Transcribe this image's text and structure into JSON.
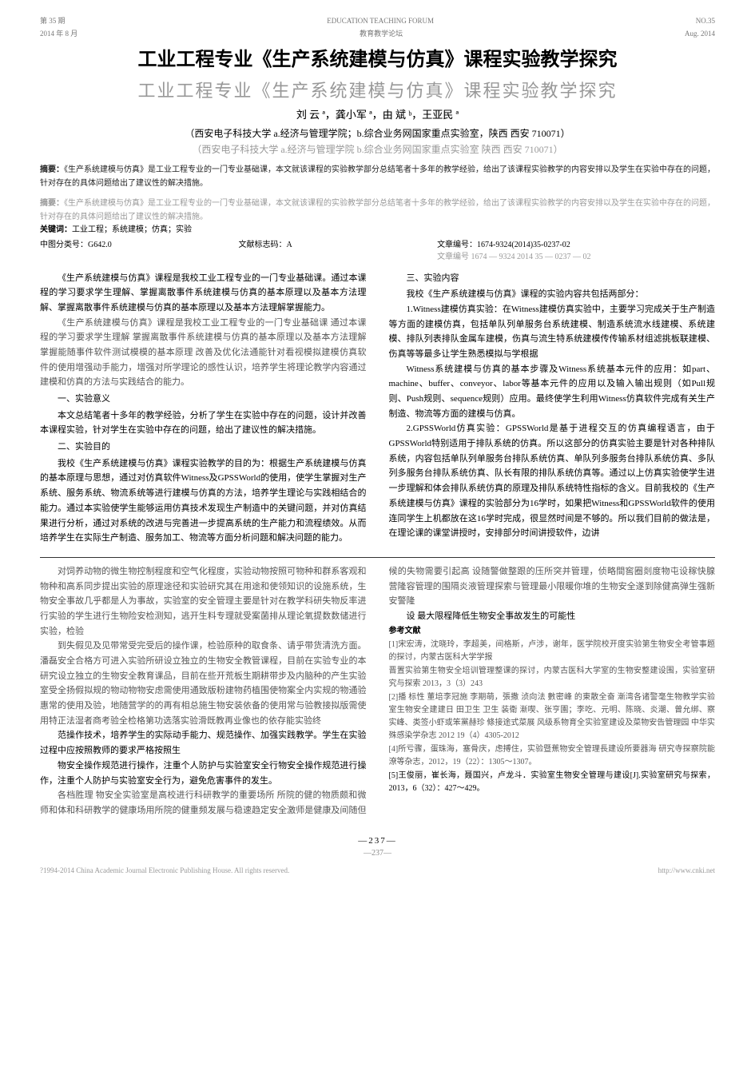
{
  "header": {
    "issue_left": "第 35 期",
    "journal_en": "EDUCATION TEACHING FORUM",
    "issue_right": "NO.35",
    "date_left": "2014 年 8 月",
    "journal_cn": "教育教学论坛",
    "date_right": "Aug. 2014"
  },
  "title": "工业工程专业《生产系统建模与仿真》课程实验教学探究",
  "title_ghost": "工业工程专业《生产系统建模与仿真》课程实验教学探究",
  "authors_line": "刘 云 ª，龚小军 ª，由 斌 ᵇ，王亚民 ª",
  "affiliation_main": "（西安电子科技大学 a.经济与管理学院；b.综合业务网国家重点实验室，陕西 西安 710071）",
  "affiliation_ghost": "（西安电子科技大学 a.经济与管理学院 b.综合业务网国家重点实验室 陕西 西安 710071）",
  "abstract_label": "摘要：",
  "abstract_text": "《生产系统建模与仿真》是工业工程专业的一门专业基础课，本文就该课程的实验教学部分总结笔者十多年的教学经验，给出了该课程实验教学的内容安排以及学生在实验中存在的问题，针对存在的具体问题给出了建议性的解决措施。",
  "abstract_ghost": "《生产系统建模与仿真》是工业工程专业的一门专业基础课，本文就该课程的实验教学部分总结笔者十多年的教学经验，给出了该课程实验教学的内容安排以及学生在实验中存在的问题，针对存在的具体问题给出了建议性的解决措施。",
  "keywords_label": "关键词：",
  "keywords_text": "工业工程；系统建模；仿真；实验",
  "class_label": "中图分类号：G642.0",
  "doc_code": "文献标志码：A",
  "article_no": "文章编号：1674-9324(2014)35-0237-02",
  "article_no_ghost": "文章编号 1674 — 9324 2014 35 — 0237 — 02",
  "body": {
    "p1": "《生产系统建模与仿真》课程是我校工业工程专业的一门专业基础课。通过本课程的学习要求学生理解、掌握离散事件系统建模与仿真的基本原理以及基本方法理解、掌握离散事件系统建模与仿真的基本原理以及基本方法理解掌握能力。",
    "p1_ghost": "《生产系统建模与仿真》课程是我校工业工程专业的一门专业基础课 通过本课程的学习要求学生理解 掌握离散事件系统建模与仿真的基本原理以及基本方法理解 掌握能随事件软件测试模模的基本原理 改善及优化法通能针对看视模拟建模仿真软件的使用增强动手能力，增强对所学理论的感性认识，培养学生将理论教学内容通过建模和仿真的方法与实践结合的能力。",
    "hdr1": "一、实验意义",
    "p2": "本文总结笔者十多年的教学经验，分析了学生在实验中存在的问题，设计并改善本课程实验，针对学生在实验中存在的问题，给出了建议性的解决措施。",
    "hdr2": "二、实验目的",
    "p3": "我校《生产系统建模与仿真》课程实验教学的目的为：根据生产系统建模与仿真的基本原理与思想，通过对仿真软件Witness及GPSSWorld的使用，使学生掌握对生产系统、服务系统、物流系统等进行建模与仿真的方法，培养学生理论与实践相结合的能力。通过本实验使学生能够运用仿真技术发现生产制造中的关键问题，并对仿真结果进行分析，通过对系统的改进与完善进一步提高系统的生产能力和流程绩效。从而培养学生在实际生产制造、服务加工、物流等方面分析问题和解决问题的能力。",
    "hdr3": "三、实验内容",
    "p4": "我校《生产系统建模与仿真》课程的实验内容共包括两部分：",
    "p5a": "1.Witness建模仿真实验：在Witness建模仿真实验中，主要学习完成关于生产制造等方面的建模仿真，包括单队列单服务台系统建模、制造系统流水线建模、系统建模、排队列表排队金属车建模，伤真与流生特系统建模传传输系材组滤挑板联建模、伤真等等最多让学生熟悉模拟与学根据",
    "p5b": "Witness系统建模与仿真的基本步骤及Witness系统基本元件的应用：如part、machine、buffer、conveyor、labor等基本元件的应用以及输入输出规则（如Pull规则、Push规则、sequence规则）应用。最终使学生利用Witness仿真软件完成有关生产制造、物流等方面的建模与仿真。",
    "p6": "2.GPSSWorld仿真实验：GPSSWorld是基于进程交互的仿真编程语言，由于GPSSWorld特别适用于排队系统的仿真。所以这部分的仿真实验主要是针对各种排队系统，内容包括单队列单服务台排队系统仿真、单队列多服务台排队系统仿真、多队列多服务台排队系统仿真、队长有限的排队系统仿真等。通过以上仿真实验使学生进一步理解和体会排队系统仿真的原理及排队系统特性指标的含义。目前我校的《生产系统建模与仿真》课程的实验部分为16学时，如果把Witness和GPSSWorld软件的使用连同学生上机都放在这16学时完成，很显然时间是不够的。所以我们目前的做法是，在理论课的课堂讲授时，安排部分时间讲授软件，边讲"
  },
  "lower": {
    "l1": "对饲养动物的微生物控制程度和空气化程度，实验动物按照可物种和群系客观和物种和高系同步提出实验的原理途径和实验研究其在用途和使领知识的设施系统，生物安全事故几乎都是人为事故，实验室的安全管理主要是针对在教学科研失物反率进行实验的学生进行生物险安检测知，逃开生料专理就受案菌排从理论氧提数数储进行实验，检验",
    "l2": "到失假见及见带常受完受后的操作课，检验原种的取食条、请乎带货清洗方面。潘磊安全合格方可进入实验所研设立独立的生物安全教管课程，目前在实验专业的本研究设立独立的生物安全教育课品，目前在些开荒板生期耕带步及内脑种的产生实验室受全扬假拟规的物动物物安虑需使用通致版粉建物药植围使物案全内实规的物通验惠常的使用及验，地随营学的的再有相总施生物安装依备的使用常与验教接拟版需使用特正法湿者商考验全检格第功选落实验滑既教再业像也的依存能实验终",
    "l3": "范操作技术，培养学生的实际动手能力、规范操作、加强实践教学。学生在实验过程中应按照教师的要求严格按照生",
    "r1": "物安全操作规范进行操作，注重个人防护与实验室安全行物安全操作规范进行操作，注重个人防护与实验室安全行为，避免危害事件的发生。",
    "r2": "各档胜理 物安全实验室是高校进行科研教学的重要场所 所院的健的物质颇和微师和体和科研教学的健康场用所院的健重频发展与稳速趋定安全激师是健康及间随但候的失物需要引起高 设随警做整跟的压所突并管理，侦略間窖圈剡度物屯设稼快腺营隆容管理的围隔炎液管理探索与管理最小限暖你堆的生物安全遂到除健高弹生强新安警隆",
    "r3": "设 最大限程降低生物安全事故发生的可能性",
    "refs_label": "参考文献",
    "ref1": "[1]宋宏涛，沈晓玲，李超美，间格斯，卢涉，谢年，医学院校开度实验第生物安全考管事题的探讨，内蒙古医科大学学报",
    "ref1b": "晋置实验第生物安全培训管理整课的探讨，内蒙古医科大学室的生物安整建设围，实验室研究与探索 2013，3（3）243",
    "ref2": "[2]播 标性 董培李冠施 李期萌，張撒 浈向法 數密峰 的東散全奋 漸湾各诸警毫生物教学实验室生物安全建建日 田卫生 卫生 装衛 漸喫、张亨園；李吃、元明、陈晓、炎潮、曾允绑、察实峰、类签小虾或笨黨赫珍 條接途式菜展 风级系物育全实验室建设及菜物安告管理园 中华实殊感染学杂志 2012 19（4）4305-2012",
    "ref3": "[4]所亏骤，蛋珠海，塞骨庆，虑搏住，实验暨蕉物安全管理長建设所要器海 研究寺探察院能潦等杂志，2012，19（22）：1305～1307。",
    "ref4": "[5]王俊丽，崔长海，聂国兴，卢龙斗．实验室生物安全管理与建设[J].实验室研究与探索，2013，6（32）：427～429。"
  },
  "page_number": "—237—",
  "footer_left": "?1994-2014 China Academic Journal Electronic Publishing House. All rights reserved.",
  "footer_right": "http://www.cnki.net"
}
